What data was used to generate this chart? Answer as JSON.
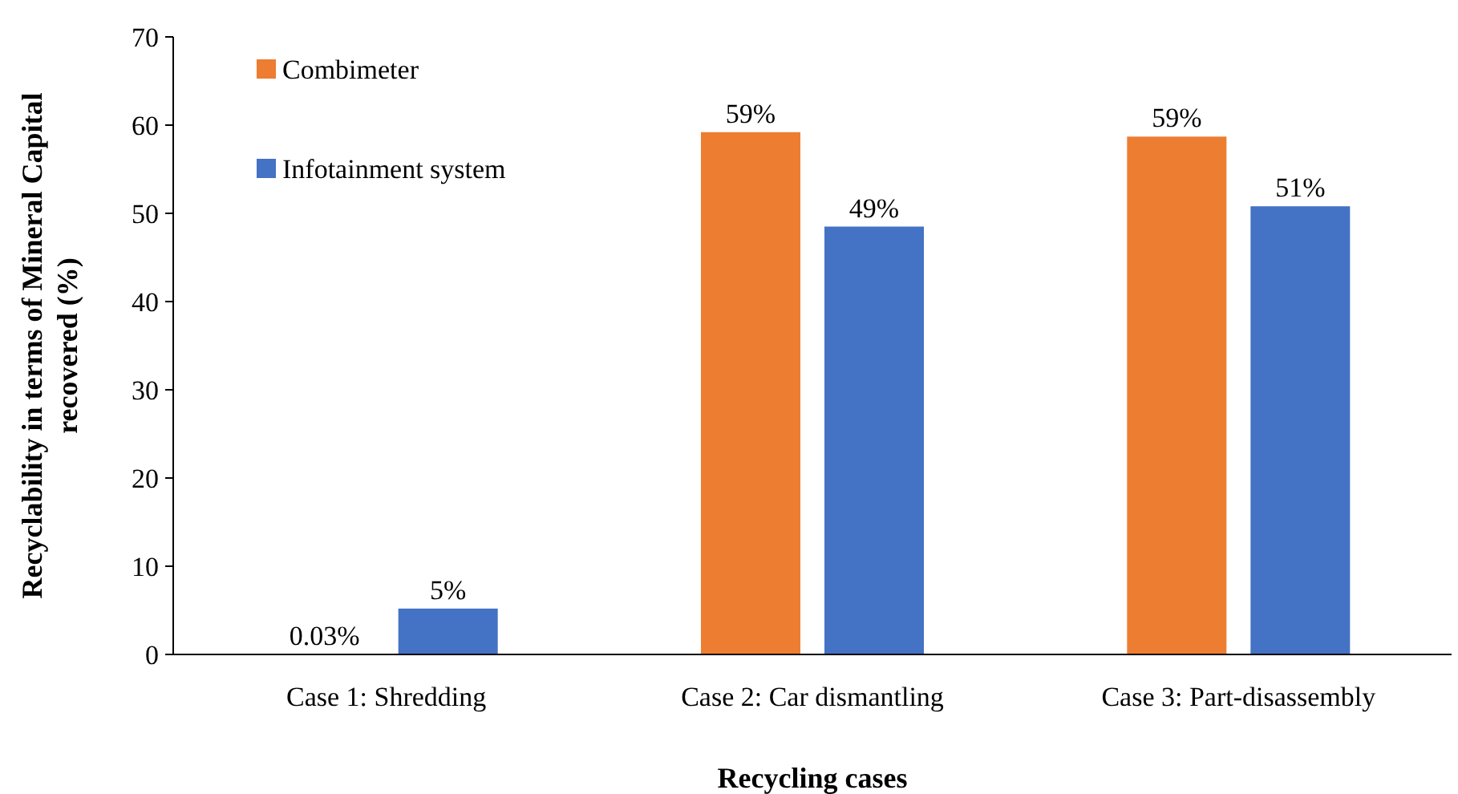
{
  "chart_data": {
    "type": "bar",
    "xlabel": "Recycling cases",
    "ylabel": "Recyclability in terms of Mineral Capital recovered (%)",
    "categories": [
      "Case 1: Shredding",
      "Case 2: Car dismantling",
      "Case 3: Part-disassembly"
    ],
    "series": [
      {
        "name": "Combimeter",
        "color": "#ed7d31",
        "values": [
          0.03,
          59.2,
          58.7
        ],
        "value_labels": [
          "0.03%",
          "59%",
          "59%"
        ]
      },
      {
        "name": "Infotainment system",
        "color": "#4472c4",
        "values": [
          5.2,
          48.5,
          50.8
        ],
        "value_labels": [
          "5%",
          "49%",
          "51%"
        ]
      }
    ],
    "ylim": [
      0,
      70
    ],
    "yticks": [
      0,
      10,
      20,
      30,
      40,
      50,
      60,
      70
    ],
    "grid": false,
    "legend": "top left"
  }
}
